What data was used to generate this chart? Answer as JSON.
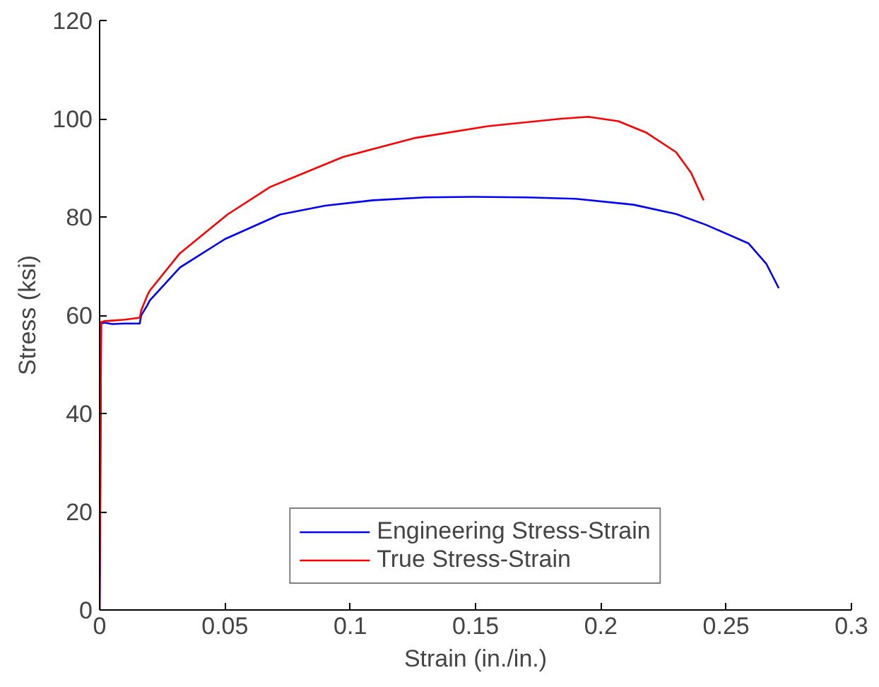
{
  "chart_data": {
    "type": "line",
    "xlabel": "Strain (in./in.)",
    "ylabel": "Stress (ksi)",
    "xlim": [
      0,
      0.3
    ],
    "ylim": [
      0,
      120
    ],
    "xticks": [
      0,
      0.05,
      0.1,
      0.15,
      0.2,
      0.25,
      0.3
    ],
    "yticks": [
      0,
      20,
      40,
      60,
      80,
      100,
      120
    ],
    "grid": false,
    "legend": "bottom",
    "line_style": "solid",
    "marker": "none",
    "series": [
      {
        "name": "Engineering Stress-Strain",
        "color": "#0000ff",
        "x": [
          0,
          0.0006,
          0.002,
          0.005,
          0.01,
          0.016,
          0.0166,
          0.019,
          0.02,
          0.032,
          0.05,
          0.072,
          0.09,
          0.109,
          0.13,
          0.149,
          0.17,
          0.19,
          0.213,
          0.23,
          0.242,
          0.259,
          0.266,
          0.271
        ],
        "values": [
          0,
          58.3,
          58.5,
          58.2,
          58.3,
          58.3,
          60,
          62,
          63,
          69.7,
          75.5,
          80.5,
          82.3,
          83.4,
          84,
          84.1,
          84,
          83.7,
          82.5,
          80.6,
          78.4,
          74.6,
          70.5,
          65.5
        ]
      },
      {
        "name": "True Stress-Strain",
        "color": "#ff0000",
        "x": [
          0,
          0.0006,
          0.002,
          0.005,
          0.01,
          0.016,
          0.0166,
          0.019,
          0.02,
          0.032,
          0.051,
          0.068,
          0.097,
          0.126,
          0.155,
          0.184,
          0.195,
          0.207,
          0.218,
          0.23,
          0.236,
          0.241
        ],
        "values": [
          0,
          58.6,
          58.8,
          58.9,
          59.1,
          59.5,
          61,
          64,
          65,
          72.6,
          80.5,
          86.1,
          92.2,
          96.1,
          98.5,
          100,
          100.4,
          99.5,
          97.2,
          93.2,
          89,
          83.4
        ]
      }
    ]
  }
}
